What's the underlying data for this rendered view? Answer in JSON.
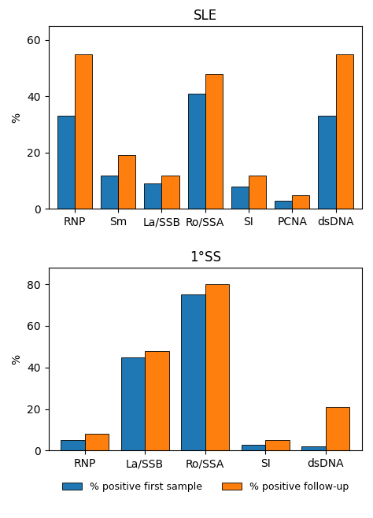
{
  "chart_data": [
    {
      "type": "bar",
      "title": "SLE",
      "y_label": "%",
      "categories": [
        "RNP",
        "Sm",
        "La/SSB",
        "Ro/SSA",
        "SI",
        "PCNA",
        "dsDNA"
      ],
      "series": [
        {
          "name": "% positive first sample",
          "values": [
            33,
            12,
            9,
            41,
            8,
            3,
            33
          ]
        },
        {
          "name": "% positive follow-up",
          "values": [
            55,
            19,
            12,
            48,
            12,
            5,
            55
          ]
        }
      ],
      "ylim": [
        0,
        65
      ],
      "yticks": [
        0,
        20,
        40,
        60
      ]
    },
    {
      "type": "bar",
      "title": "1°SS",
      "y_label": "%",
      "categories": [
        "RNP",
        "La/SSB",
        "Ro/SSA",
        "SI",
        "dsDNA"
      ],
      "series": [
        {
          "name": "% positive first sample",
          "values": [
            5,
            45,
            75,
            3,
            2
          ]
        },
        {
          "name": "% positive follow-up",
          "values": [
            8,
            48,
            80,
            5,
            21
          ]
        }
      ],
      "ylim": [
        0,
        88
      ],
      "yticks": [
        0,
        20,
        40,
        60,
        80
      ],
      "legend": "upper center"
    }
  ]
}
